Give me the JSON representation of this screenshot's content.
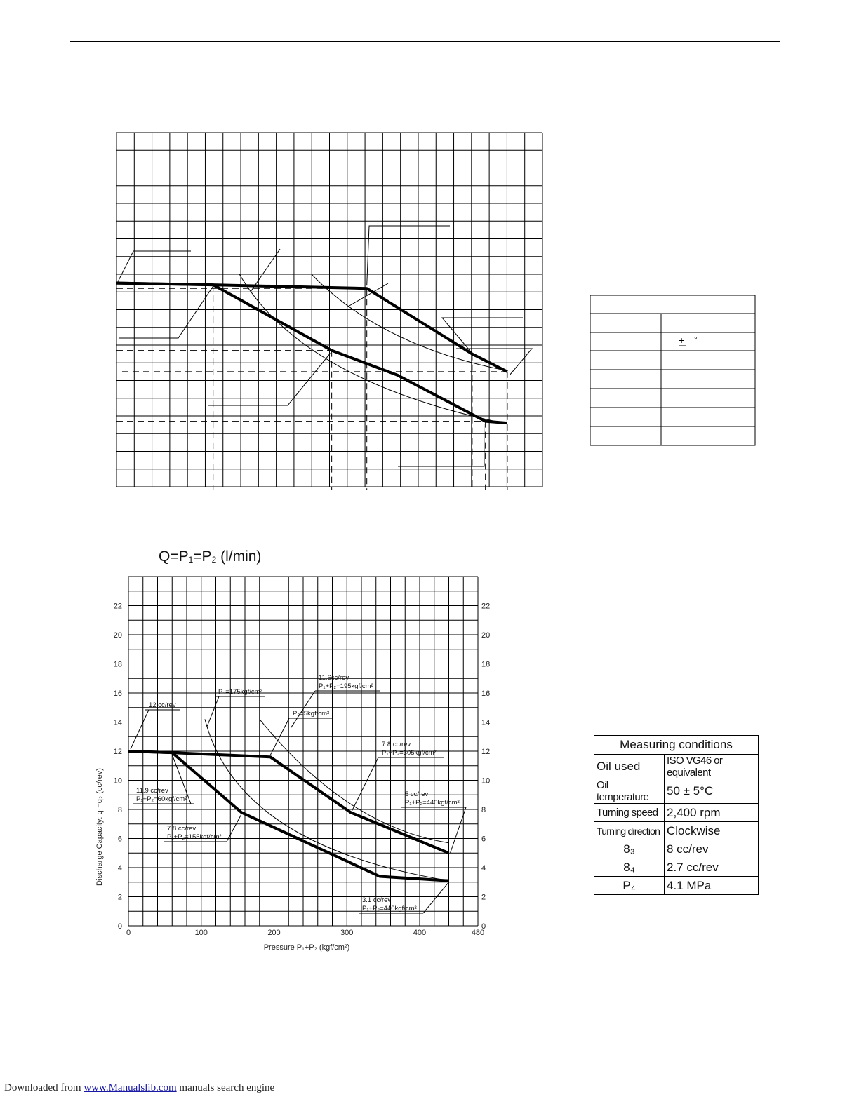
{
  "chart_data": [
    {
      "type": "line",
      "title": "",
      "xlabel": "",
      "ylabel": "",
      "tick_labels": "none",
      "grid": true,
      "series": [
        {
          "x": [
            0,
            110,
            285,
            405,
            445
          ],
          "y": [
            11.5,
            11.4,
            11.2,
            7.5,
            6.5
          ]
        },
        {
          "x": [
            0,
            110,
            245,
            320,
            420,
            445
          ],
          "y": [
            11.5,
            11.4,
            7.7,
            6.3,
            3.7,
            3.6
          ]
        }
      ]
    },
    {
      "type": "line",
      "title_parts": {
        "a": "Q=P",
        "a_sub": "1",
        "b": "=P",
        "b_sub": "2",
        "c": " (l/min)"
      },
      "xlabel": "Pressure P₁+P₂ (kgf/cm²)",
      "ylabel": "Discharge Capacity: q₁=q₂ (cc/rev)",
      "xlim": [
        0,
        480
      ],
      "ylim": [
        0,
        24
      ],
      "x_ticks": [
        "0",
        "100",
        "200",
        "300",
        "400",
        "480"
      ],
      "y_ticks": [
        "0",
        "2",
        "4",
        "6",
        "8",
        "10",
        "12",
        "14",
        "16",
        "18",
        "20",
        "22"
      ],
      "grid": true,
      "series": [
        {
          "x": [
            0,
            60,
            195,
            305,
            440
          ],
          "y": [
            12,
            11.9,
            11.6,
            7.8,
            5
          ]
        },
        {
          "x": [
            0,
            60,
            155,
            345,
            440
          ],
          "y": [
            12,
            11.9,
            7.8,
            3.4,
            3.1
          ]
        }
      ],
      "annotations": [
        {
          "lines": [
            "12 cc/rev"
          ]
        },
        {
          "lines": [
            "P₃=175kgf/cm²"
          ]
        },
        {
          "lines": [
            "11.6cc/rev",
            "P₁+P₂=195kgf/cm²"
          ]
        },
        {
          "lines": [
            "P₃=5kgf/cm²"
          ]
        },
        {
          "lines": [
            "7.8 cc/rev",
            "P₁+P₂=305kgf/cm²"
          ]
        },
        {
          "lines": [
            "11.9 cc/rev",
            "P₁+P₂=60kgf/cm²"
          ]
        },
        {
          "lines": [
            "5 cc/rev",
            "P₁+P₂=440kgf/cm²"
          ]
        },
        {
          "lines": [
            "7.8 cc/rev",
            "P₁+P₂=155kgf/cm²"
          ]
        },
        {
          "lines": [
            "3.1 cc/rev",
            "P₁+P₂=440kgf/cm²"
          ]
        }
      ]
    }
  ],
  "table_top": {
    "plus_minus": "±",
    "degree": "°"
  },
  "measuring_conditions": {
    "header": "Measuring conditions",
    "rows": [
      {
        "label": "Oil used",
        "value": "ISO VG46 or equivalent"
      },
      {
        "label": "Oil temperature",
        "value": "50 ± 5°C"
      },
      {
        "label": "Turning speed",
        "value": "2,400 rpm"
      },
      {
        "label": "Turning direction",
        "value": "Clockwise"
      },
      {
        "label": "8₃",
        "value": "8 cc/rev"
      },
      {
        "label": "8₄",
        "value": "2.7 cc/rev"
      },
      {
        "label": "P₄",
        "value": "4.1 MPa"
      }
    ]
  },
  "footer": {
    "prefix": "Downloaded from ",
    "link": "www.Manualslib.com",
    "suffix": "  manuals search engine"
  }
}
